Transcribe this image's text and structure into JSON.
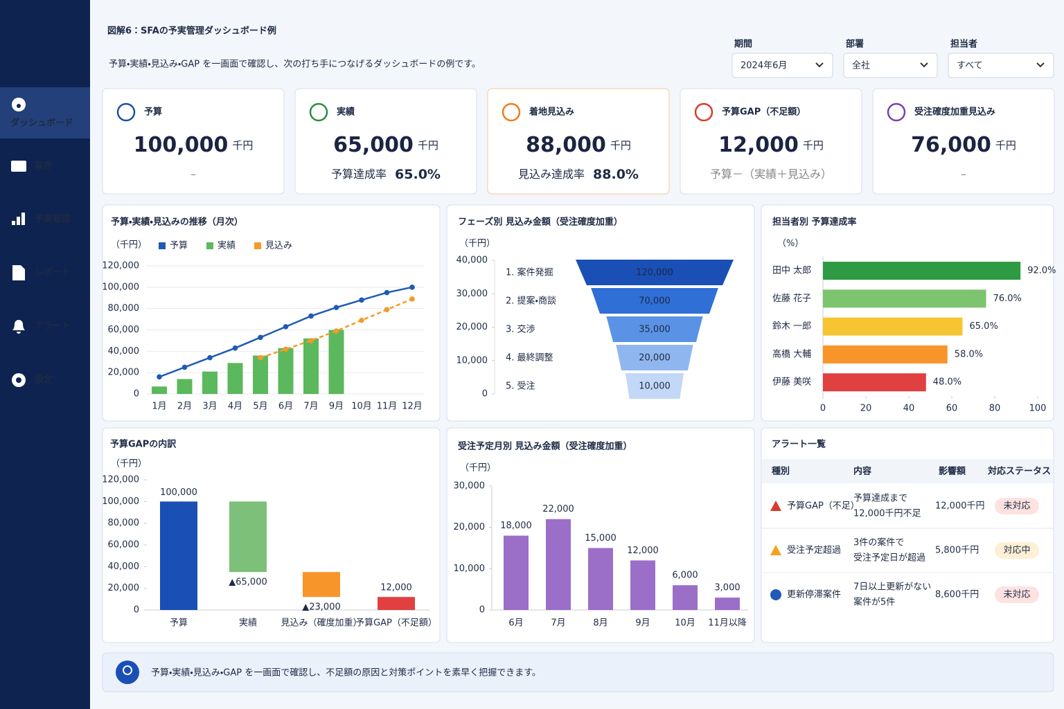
{
  "sidebar": {
    "items": [
      "ダッシュボード",
      "案件",
      "予実管理",
      "レポート",
      "アラート",
      "設定"
    ]
  },
  "header": {
    "title": "図解6：SFAの予実管理ダッシュボード例",
    "subtitle": "予算・実績・見込み・GAP を一画面で確認し、次の打ち手につなげるダッシュボードの例です。",
    "filters": [
      {
        "label": "期間",
        "value": "2024年6月"
      },
      {
        "label": "部署",
        "value": "全社"
      },
      {
        "label": "担当者",
        "value": "すべて"
      }
    ]
  },
  "kpis": [
    {
      "title": "予算",
      "value": "100,000",
      "unit": "千円",
      "note": "–",
      "color": "#1f4fa8"
    },
    {
      "title": "実績",
      "value": "65,000",
      "unit": "千円",
      "note": "予算達成率",
      "note_value": "65.0%",
      "color": "#2e8b3e"
    },
    {
      "title": "着地見込み",
      "value": "88,000",
      "unit": "千円",
      "note": "見込み達成率",
      "note_value": "88.0%",
      "color": "#f07c1a"
    },
    {
      "title": "予算GAP（不足額）",
      "value": "12,000",
      "unit": "千円",
      "note": "予算－（実績＋見込み）",
      "color": "#d93a2e"
    },
    {
      "title": "受注確度加重見込み",
      "value": "76,000",
      "unit": "千円",
      "note": "–",
      "color": "#7b3fb0"
    }
  ],
  "charts": [
    {
      "type": "combo",
      "title": "予算・実績・見込みの推移（月次）",
      "unit": "（千円）",
      "categories": [
        "1月",
        "2月",
        "3月",
        "4月",
        "5月",
        "6月",
        "7月",
        "9月",
        "10月",
        "11月",
        "12月"
      ],
      "series": [
        {
          "name": "予算",
          "type": "line",
          "color": "#1f5bb5",
          "values": [
            16000,
            25000,
            34000,
            43000,
            53000,
            63000,
            73000,
            81000,
            88000,
            95000,
            100000
          ]
        },
        {
          "name": "実績",
          "type": "bar",
          "color": "#5cb85c",
          "values": [
            7000,
            14000,
            21000,
            29000,
            36000,
            43000,
            52000,
            60000,
            null,
            null,
            null
          ]
        },
        {
          "name": "見込み",
          "type": "line",
          "dashed": true,
          "color": "#f39a2b",
          "values": [
            null,
            null,
            null,
            null,
            34000,
            42000,
            50000,
            59000,
            69000,
            79000,
            89000
          ]
        }
      ],
      "ylim": [
        0,
        120000
      ],
      "yticks": [
        0,
        {
          "value": 20000,
          "label": "20,000"
        },
        {
          "value": 40000,
          "label": "40,000"
        },
        {
          "value": 60000,
          "label": "60,000"
        },
        {
          "value": 80000,
          "label": "80,000"
        },
        {
          "value": 100000,
          "label": "100,000"
        },
        {
          "value": 120000,
          "label": "120,000"
        }
      ],
      "grid": true
    },
    {
      "type": "funnel",
      "title": "フェーズ別 見込み金額（受注確度加重）",
      "unit": "（千円）",
      "categories": [
        "1. 案件発掘",
        "2. 提案・商談",
        "3. 交渉",
        "4. 最終調整",
        "5. 受注"
      ],
      "values": [
        120000,
        70000,
        35000,
        20000,
        10000
      ],
      "value_labels": [
        "120,000",
        "70,000",
        "35,000",
        "20,000",
        "10,000"
      ],
      "colors": [
        "#1a4fb5",
        "#2f6fd6",
        "#5a92e6",
        "#8fb6ef",
        "#c3d8f6"
      ],
      "ylim": [
        0,
        40000
      ],
      "yticks": [
        0,
        {
          "value": 10000,
          "label": "10,000"
        },
        {
          "value": 20000,
          "label": "20,000"
        },
        {
          "value": 30000,
          "label": "30,000"
        },
        {
          "value": 40000,
          "label": "40,000"
        }
      ]
    },
    {
      "type": "hbar",
      "title": "担当者別 予算達成率",
      "unit": "（%）",
      "categories": [
        "田中 太郎",
        "佐藤 花子",
        "鈴木 一郎",
        "高橋 大輔",
        "伊藤 美咲"
      ],
      "values": [
        92,
        76,
        65,
        58,
        48
      ],
      "value_labels": [
        "92.0%",
        "76.0%",
        "65.0%",
        "58.0%",
        "48.0%"
      ],
      "colors": [
        "#2e9a44",
        "#7cc46e",
        "#f7c531",
        "#f7952b",
        "#e04040"
      ],
      "xlim": [
        0,
        100
      ],
      "xticks": [
        0,
        20,
        40,
        60,
        80,
        100
      ]
    },
    {
      "type": "waterfall",
      "title": "予算GAPの内訳",
      "unit": "（千円）",
      "categories": [
        "予算",
        "実績",
        "見込み（確度加重）",
        "予算GAP（不足額）"
      ],
      "values": [
        100000,
        -65000,
        -23000,
        12000
      ],
      "value_labels": [
        "100,000",
        "▲65,000",
        "▲23,000",
        "12,000"
      ],
      "colors": [
        "#1a4fb5",
        "#7cc07a",
        "#f7952b",
        "#e04040"
      ],
      "ylim": [
        0,
        120000
      ],
      "yticks": [
        0,
        {
          "value": 20000,
          "label": "20,000"
        },
        {
          "value": 40000,
          "label": "40,000"
        },
        {
          "value": 60000,
          "label": "60,000"
        },
        {
          "value": 80000,
          "label": "80,000"
        },
        {
          "value": 100000,
          "label": "100,000"
        },
        {
          "value": 120000,
          "label": "120,000"
        }
      ]
    },
    {
      "type": "bar",
      "title": "受注予定月別 見込み金額（受注確度加重）",
      "unit": "（千円）",
      "categories": [
        "6月",
        "7月",
        "8月",
        "9月",
        "10月",
        "11月以降"
      ],
      "values": [
        18000,
        22000,
        15000,
        12000,
        6000,
        3000
      ],
      "value_labels": [
        "18,000",
        "22,000",
        "15,000",
        "12,000",
        "6,000",
        "3,000"
      ],
      "color": "#9b6fc8",
      "ylim": [
        0,
        30000
      ],
      "yticks": [
        0,
        {
          "value": 10000,
          "label": "10,000"
        },
        {
          "value": 20000,
          "label": "20,000"
        },
        {
          "value": 30000,
          "label": "30,000"
        }
      ]
    }
  ],
  "alerts": {
    "title": "アラート一覧",
    "columns": [
      "種別",
      "内容",
      "影響額",
      "対応ステータス"
    ],
    "rows": [
      {
        "type": "予算GAP（不足）",
        "content": [
          "予算達成まで",
          "12,000千円不足"
        ],
        "amount": "12,000千円",
        "status": "未対応",
        "icon_color": "#d93a2e",
        "status_color": "#c0392b",
        "status_bg": "#fde2e0"
      },
      {
        "type": "受注予定超過",
        "content": [
          "3件の案件で",
          "受注予定日が超過"
        ],
        "amount": "5,800千円",
        "status": "対応中",
        "icon_color": "#f4a21c",
        "status_color": "#9a5a00",
        "status_bg": "#fdf0d5"
      },
      {
        "type": "更新停滞案件",
        "content": [
          "7日以上更新がない",
          "案件が5件"
        ],
        "amount": "8,600千円",
        "status": "未対応",
        "icon_color": "#1f5bb5",
        "status_color": "#c0392b",
        "status_bg": "#fde2e0"
      }
    ]
  },
  "footer": "予算・実績・見込み・GAP を一画面で確認し、不足額の原因と対策ポイントを素早く把握できます。"
}
